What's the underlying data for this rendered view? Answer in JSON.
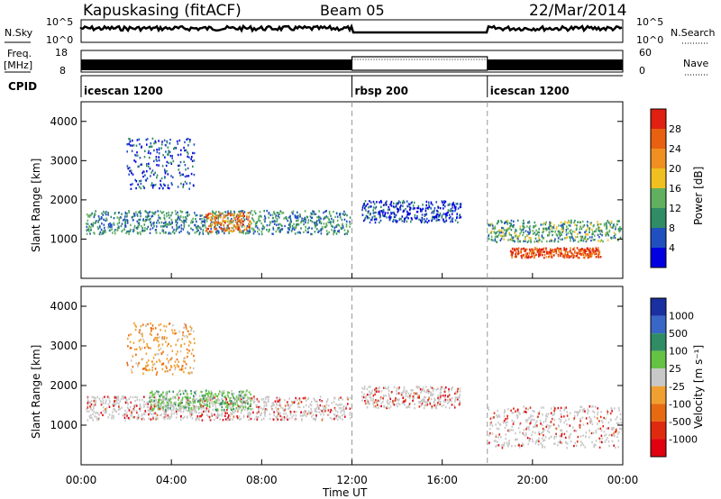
{
  "header": {
    "station": "Kapuskasing (fitACF)",
    "beam": "Beam 05",
    "date": "22/Mar/2014"
  },
  "strips": {
    "nsky": {
      "label": "N.Sky",
      "ticks": [
        "10^5",
        "10^0"
      ]
    },
    "nsearch": {
      "label": "N.Search",
      "ticks": [
        "10^5",
        "10^0"
      ]
    },
    "freq": {
      "label": "Freq.",
      "unit": "[MHz]",
      "ticks": [
        "18",
        "8"
      ]
    },
    "nave": {
      "label": "Nave",
      "ticks": [
        "60",
        "0"
      ]
    },
    "cpid": {
      "label": "CPID",
      "segments": [
        {
          "name": "icescan 1200",
          "start_h": 0,
          "end_h": 12
        },
        {
          "name": "rbsp 200",
          "start_h": 12,
          "end_h": 18
        },
        {
          "name": "icescan 1200",
          "start_h": 18,
          "end_h": 24
        }
      ]
    }
  },
  "colorbars": {
    "power": {
      "label": "Power [dB]",
      "ticks": [
        "28",
        "24",
        "20",
        "16",
        "12",
        "8",
        "4"
      ],
      "colors": [
        "#0000e0",
        "#2050c0",
        "#2f8c64",
        "#60b060",
        "#f0c020",
        "#f09020",
        "#e86010",
        "#e02010"
      ]
    },
    "velocity": {
      "label": "Velocity [m s⁻¹]",
      "ticks": [
        "1000",
        "500",
        "100",
        "25",
        "-25",
        "-100",
        "-500",
        "-1000"
      ],
      "colors": [
        "#1a2fa0",
        "#3a66c8",
        "#2f8c64",
        "#66c244",
        "#c8c8c8",
        "#f0a030",
        "#e86a10",
        "#e02a10",
        "#e00010"
      ]
    }
  },
  "chart_data": [
    {
      "type": "heatmap",
      "title": "Power",
      "ylabel": "Slant Range [km]",
      "xlabel": "Time UT",
      "xlim": [
        0,
        24
      ],
      "ylim": [
        0,
        4500
      ],
      "yticks": [
        "1000",
        "2000",
        "3000",
        "4000"
      ],
      "xticks": [
        "00:00",
        "04:00",
        "08:00",
        "12:00",
        "16:00",
        "20:00",
        "00:00"
      ],
      "bands": [
        {
          "t": [
            0.2,
            11.9
          ],
          "range_km": [
            1150,
            1750
          ],
          "dB": 10
        },
        {
          "t": [
            5.5,
            7.5
          ],
          "range_km": [
            1200,
            1700
          ],
          "dB": 24
        },
        {
          "t": [
            2.0,
            5.0
          ],
          "range_km": [
            2300,
            3600
          ],
          "dB": 6
        },
        {
          "t": [
            12.4,
            16.8
          ],
          "range_km": [
            1450,
            2000
          ],
          "dB": 5
        },
        {
          "t": [
            18.0,
            23.9
          ],
          "range_km": [
            950,
            1500
          ],
          "dB": 12
        },
        {
          "t": [
            19.0,
            23.0
          ],
          "range_km": [
            550,
            800
          ],
          "dB": 27
        }
      ]
    },
    {
      "type": "heatmap",
      "title": "Velocity",
      "ylabel": "Slant Range [km]",
      "xlabel": "Time UT",
      "xlim": [
        0,
        24
      ],
      "ylim": [
        0,
        4500
      ],
      "yticks": [
        "1000",
        "2000",
        "3000",
        "4000"
      ],
      "xticks": [
        "00:00",
        "04:00",
        "08:00",
        "12:00",
        "16:00",
        "20:00",
        "00:00"
      ],
      "bands": [
        {
          "t": [
            0.2,
            11.9
          ],
          "range_km": [
            1150,
            1750
          ],
          "v": 0
        },
        {
          "t": [
            3.0,
            7.5
          ],
          "range_km": [
            1400,
            1900
          ],
          "v": 150
        },
        {
          "t": [
            2.0,
            5.0
          ],
          "range_km": [
            2300,
            3600
          ],
          "v": -200
        },
        {
          "t": [
            12.4,
            16.8
          ],
          "range_km": [
            1450,
            2000
          ],
          "v": 0
        },
        {
          "t": [
            18.0,
            23.9
          ],
          "range_km": [
            450,
            1500
          ],
          "v": 0
        }
      ]
    }
  ]
}
